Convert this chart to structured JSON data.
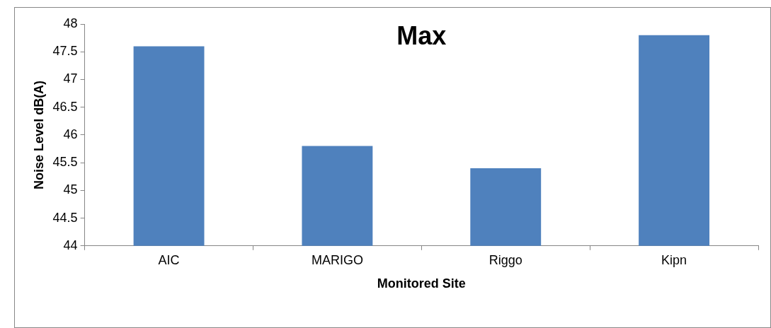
{
  "chart_data": {
    "type": "bar",
    "title": "Max",
    "xlabel": "Monitored Site",
    "ylabel": "Noise Level dB(A)",
    "categories": [
      "AIC",
      "MARIGO",
      "Riggo",
      "Kipn"
    ],
    "values": [
      47.6,
      45.8,
      45.4,
      47.8
    ],
    "color": "#4f81bd",
    "ylim": [
      44,
      48
    ],
    "yticks": [
      44,
      44.5,
      45,
      45.5,
      46,
      46.5,
      47,
      47.5,
      48
    ],
    "grid": false,
    "legend": false
  }
}
